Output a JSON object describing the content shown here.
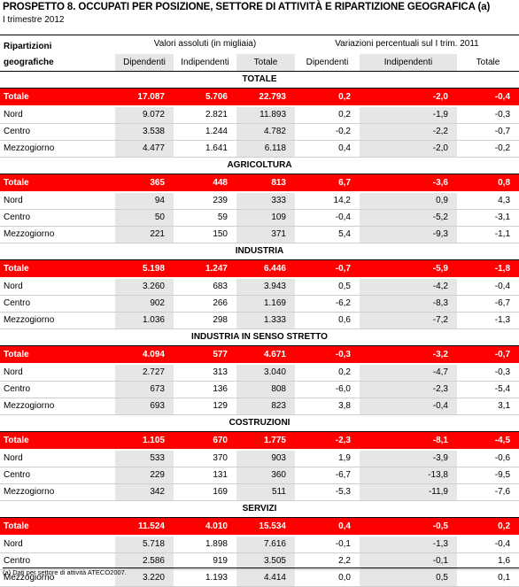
{
  "title": "PROSPETTO 8. OCCUPATI PER POSIZIONE, SETTORE DI ATTIVITÀ E RIPARTIZIONE GEOGRAFICA (a)",
  "subtitle": "I trimestre 2012",
  "header": {
    "row_label_1": "Ripartizioni",
    "row_label_2": "geografiche",
    "group1": "Valori assoluti (in migliaia)",
    "group2": "Variazioni percentuali sul I trim. 2011",
    "columns": [
      "Dipendenti",
      "Indipendenti",
      "Totale",
      "Dipendenti",
      "Indipendenti",
      "Totale"
    ]
  },
  "sections": [
    {
      "name": "TOTALE",
      "rows": [
        {
          "label": "Totale",
          "values": [
            "17.087",
            "5.706",
            "22.793",
            "0,2",
            "-2,0",
            "-0,4"
          ]
        },
        {
          "label": "Nord",
          "values": [
            "9.072",
            "2.821",
            "11.893",
            "0,2",
            "-1,9",
            "-0,3"
          ]
        },
        {
          "label": "Centro",
          "values": [
            "3.538",
            "1.244",
            "4.782",
            "-0,2",
            "-2,2",
            "-0,7"
          ]
        },
        {
          "label": "Mezzogiorno",
          "values": [
            "4.477",
            "1.641",
            "6.118",
            "0,4",
            "-2,0",
            "-0,2"
          ]
        }
      ]
    },
    {
      "name": "AGRICOLTURA",
      "rows": [
        {
          "label": "Totale",
          "values": [
            "365",
            "448",
            "813",
            "6,7",
            "-3,6",
            "0,8"
          ]
        },
        {
          "label": "Nord",
          "values": [
            "94",
            "239",
            "333",
            "14,2",
            "0,9",
            "4,3"
          ]
        },
        {
          "label": "Centro",
          "values": [
            "50",
            "59",
            "109",
            "-0,4",
            "-5,2",
            "-3,1"
          ]
        },
        {
          "label": "Mezzogiorno",
          "values": [
            "221",
            "150",
            "371",
            "5,4",
            "-9,3",
            "-1,1"
          ]
        }
      ]
    },
    {
      "name": "INDUSTRIA",
      "rows": [
        {
          "label": "Totale",
          "values": [
            "5.198",
            "1.247",
            "6.446",
            "-0,7",
            "-5,9",
            "-1,8"
          ]
        },
        {
          "label": "Nord",
          "values": [
            "3.260",
            "683",
            "3.943",
            "0,5",
            "-4,2",
            "-0,4"
          ]
        },
        {
          "label": "Centro",
          "values": [
            "902",
            "266",
            "1.169",
            "-6,2",
            "-8,3",
            "-6,7"
          ]
        },
        {
          "label": "Mezzogiorno",
          "values": [
            "1.036",
            "298",
            "1.333",
            "0,6",
            "-7,2",
            "-1,3"
          ]
        }
      ]
    },
    {
      "name": "INDUSTRIA IN SENSO STRETTO",
      "rows": [
        {
          "label": "Totale",
          "values": [
            "4.094",
            "577",
            "4.671",
            "-0,3",
            "-3,2",
            "-0,7"
          ]
        },
        {
          "label": "Nord",
          "values": [
            "2.727",
            "313",
            "3.040",
            "0,2",
            "-4,7",
            "-0,3"
          ]
        },
        {
          "label": "Centro",
          "values": [
            "673",
            "136",
            "808",
            "-6,0",
            "-2,3",
            "-5,4"
          ]
        },
        {
          "label": "Mezzogiorno",
          "values": [
            "693",
            "129",
            "823",
            "3,8",
            "-0,4",
            "3,1"
          ]
        }
      ]
    },
    {
      "name": "COSTRUZIONI",
      "rows": [
        {
          "label": "Totale",
          "values": [
            "1.105",
            "670",
            "1.775",
            "-2,3",
            "-8,1",
            "-4,5"
          ]
        },
        {
          "label": "Nord",
          "values": [
            "533",
            "370",
            "903",
            "1,9",
            "-3,9",
            "-0,6"
          ]
        },
        {
          "label": "Centro",
          "values": [
            "229",
            "131",
            "360",
            "-6,7",
            "-13,8",
            "-9,5"
          ]
        },
        {
          "label": "Mezzogiorno",
          "values": [
            "342",
            "169",
            "511",
            "-5,3",
            "-11,9",
            "-7,6"
          ]
        }
      ]
    },
    {
      "name": "SERVIZI",
      "rows": [
        {
          "label": "Totale",
          "values": [
            "11.524",
            "4.010",
            "15.534",
            "0,4",
            "-0,5",
            "0,2"
          ]
        },
        {
          "label": "Nord",
          "values": [
            "5.718",
            "1.898",
            "7.616",
            "-0,1",
            "-1,3",
            "-0,4"
          ]
        },
        {
          "label": "Centro",
          "values": [
            "2.586",
            "919",
            "3.505",
            "2,2",
            "-0,1",
            "1,6"
          ]
        },
        {
          "label": "Mezzogiorno",
          "values": [
            "3.220",
            "1.193",
            "4.414",
            "0,0",
            "0,5",
            "0,1"
          ]
        }
      ]
    }
  ],
  "footnote": "(a) Dati per settore di attività  ATECO2007.",
  "colors": {
    "total_row_bg": "#ff0000",
    "total_row_text": "#ffffff",
    "shaded_col": "#e6e6e6"
  }
}
